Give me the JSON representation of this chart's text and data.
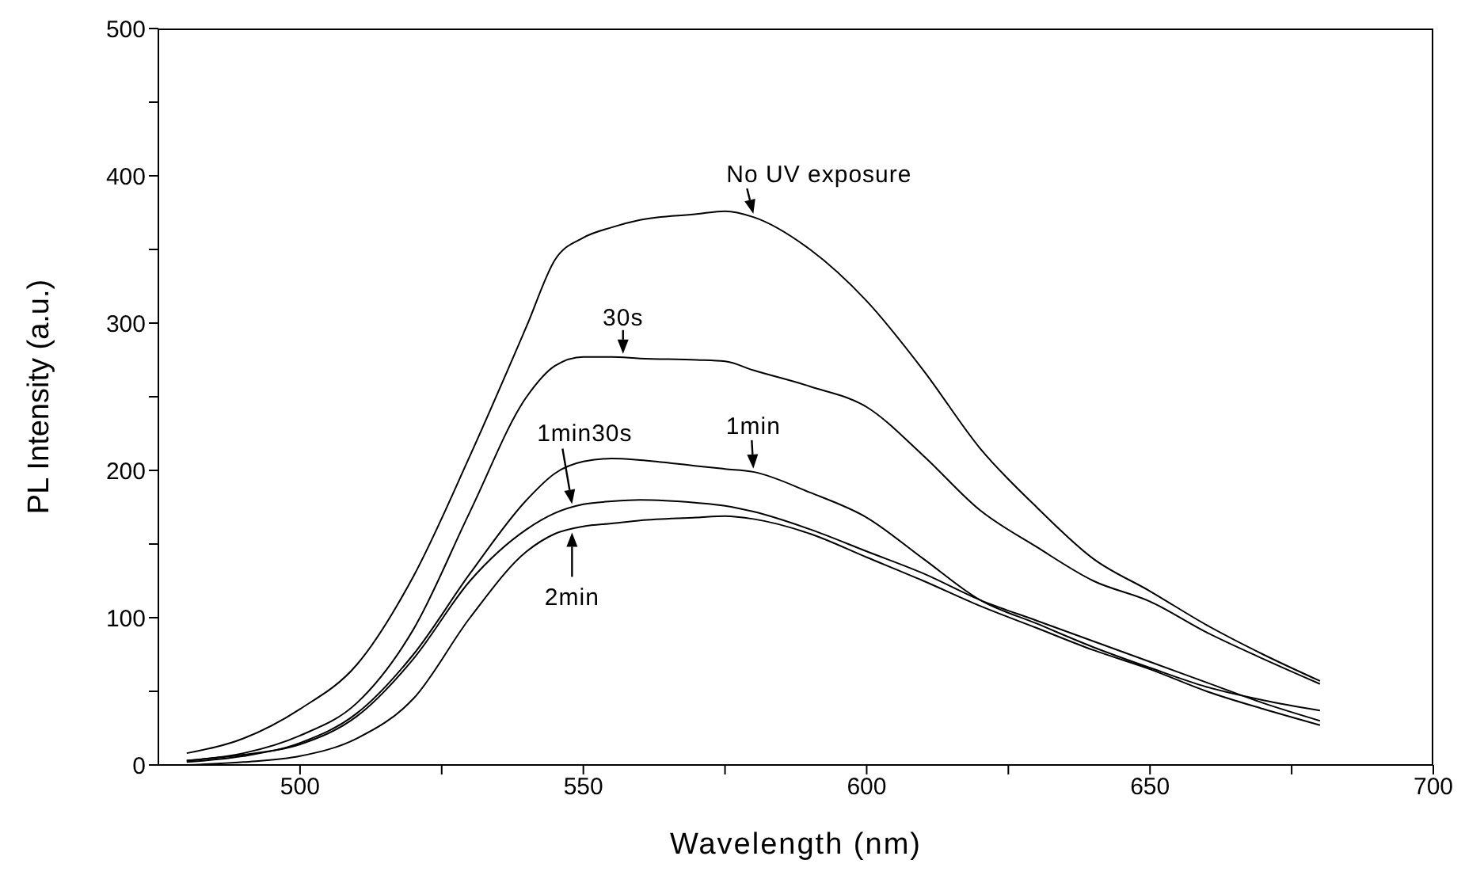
{
  "chart_data": {
    "type": "line",
    "xlabel": "Wavelength (nm)",
    "ylabel": "PL Intensity (a.u.)",
    "x": [
      480,
      490,
      500,
      510,
      520,
      530,
      540,
      545,
      550,
      555,
      560,
      570,
      575,
      580,
      590,
      600,
      610,
      620,
      630,
      640,
      650,
      660,
      670,
      680
    ],
    "series": [
      {
        "color": "#000000",
        "values": [
          8,
          18,
          38,
          68,
          128,
          210,
          298,
          343,
          358,
          365,
          370,
          374,
          376,
          372,
          350,
          315,
          268,
          215,
          175,
          140,
          118,
          95,
          75,
          57
        ]
      },
      {
        "color": "#000000",
        "values": [
          3,
          8,
          20,
          42,
          92,
          172,
          250,
          271,
          277,
          277,
          276,
          275,
          274,
          268,
          257,
          243,
          210,
          173,
          148,
          125,
          111,
          90,
          72,
          55
        ]
      },
      {
        "color": "#000000",
        "values": [
          2,
          6,
          15,
          35,
          75,
          130,
          180,
          198,
          206,
          208,
          207,
          203,
          201,
          199,
          185,
          168,
          140,
          112,
          96,
          80,
          66,
          53,
          44,
          37
        ]
      },
      {
        "color": "#000000",
        "values": [
          3,
          7,
          14,
          33,
          72,
          125,
          160,
          171,
          177,
          179,
          180,
          178,
          176,
          172,
          160,
          145,
          130,
          112,
          98,
          84,
          70,
          56,
          42,
          30
        ]
      },
      {
        "color": "#000000",
        "values": [
          0,
          2,
          6,
          18,
          45,
          100,
          145,
          157,
          162,
          164,
          166,
          168,
          169,
          167,
          157,
          141,
          125,
          108,
          93,
          78,
          65,
          50,
          38,
          27
        ]
      }
    ],
    "xlim": [
      475,
      700
    ],
    "xticks": [
      500,
      {
        "value": 525,
        "label": null
      },
      550,
      {
        "value": 575,
        "label": null
      },
      600,
      {
        "value": 625,
        "label": null
      },
      650,
      {
        "value": 675,
        "label": null
      },
      700
    ],
    "ylim": [
      0,
      500
    ],
    "yticks": [
      0,
      {
        "value": 50,
        "label": null
      },
      100,
      {
        "value": 150,
        "label": null
      },
      200,
      {
        "value": 250,
        "label": null
      },
      300,
      {
        "value": 350,
        "label": null
      },
      400,
      {
        "value": 450,
        "label": null
      },
      500
    ],
    "marker": "none",
    "line_style": "solid",
    "annotations": [
      {
        "text": "No UV exposure",
        "x": 580,
        "y": 372
      },
      {
        "text": "30s",
        "x": 557,
        "y": 277
      },
      {
        "text": "1min",
        "x": 580,
        "y": 199
      },
      {
        "text": "1min30s",
        "x": 548,
        "y": 175
      },
      {
        "text": "2min",
        "x": 548,
        "y": 160
      }
    ]
  }
}
